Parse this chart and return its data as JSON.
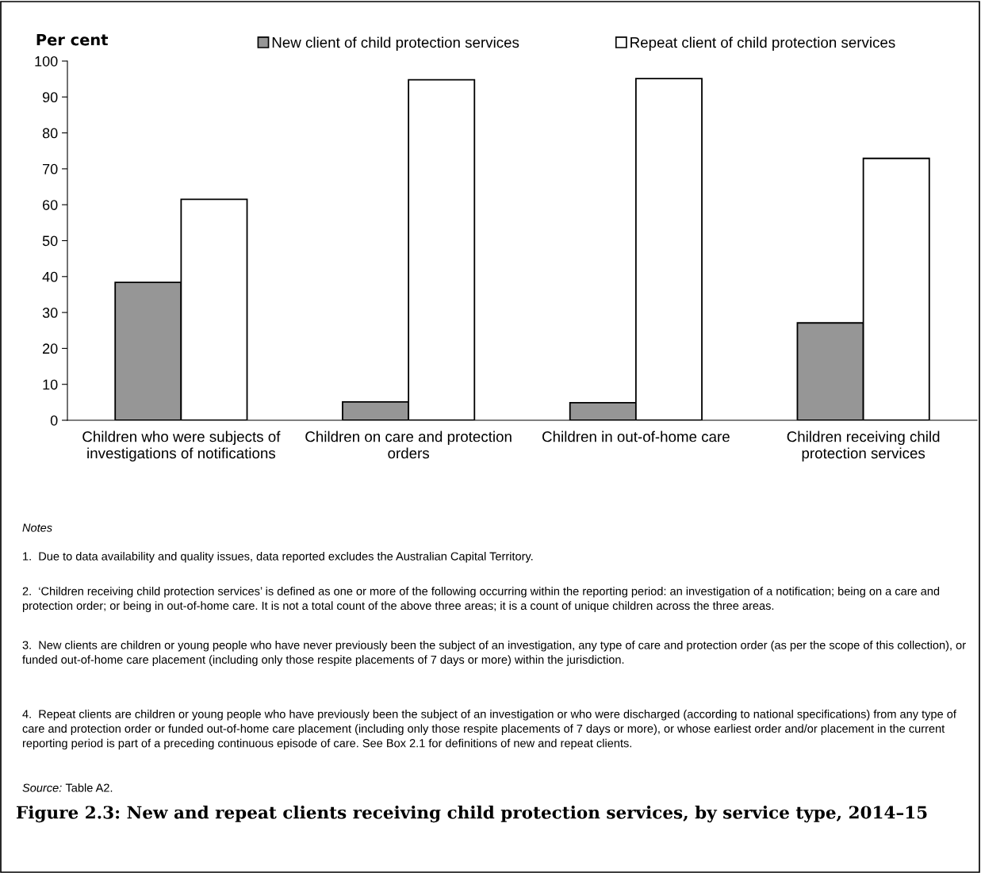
{
  "chart_data": {
    "type": "bar",
    "title": "Figure 2.3: New and repeat clients receiving child protection services, by service type, 2014–15",
    "ylabel": "Per cent",
    "categories": [
      "Children who were subjects of investigations of notifications",
      "Children on care and protection orders",
      "Children in out-of-home care",
      "Children receiving child protection services"
    ],
    "series": [
      {
        "name": "New client of child protection services",
        "color": "#969696",
        "values": [
          38.4,
          5.1,
          4.9,
          27.1
        ]
      },
      {
        "name": "Repeat client of child protection services",
        "color": "#ffffff",
        "values": [
          61.5,
          94.8,
          95.1,
          72.9
        ]
      }
    ],
    "ylim": [
      0,
      100
    ],
    "yticks": [
      0,
      10,
      20,
      30,
      40,
      50,
      60,
      70,
      80,
      90,
      100
    ],
    "grid": false,
    "legend": "top",
    "annotations": [
      "Notes",
      "1.  Due to data availability and quality issues, data reported excludes the Australian Capital Territory.",
      "2.  ‘Children receiving child protection services’ is defined as one or more of the following occurring within the reporting period: an investigation of a notification; being on a care and protection order; or being in out-of-home care. It is not a total count of the above three areas; it is a count of unique children across the three areas.",
      "3.  New clients are children or young people who have never previously been the subject of an investigation, any type of care and protection order (as per the scope of this collection), or funded out-of-home care placement (including only those respite placements of 7 days or more) within the jurisdiction.",
      "4.  Repeat clients are children or young people who have previously been the subject of an investigation or who were discharged (according to national specifications) from any type of care and protection order or funded out-of-home care placement (including only those respite placements of 7 days or more), or whose earliest order and/or placement in the current reporting period is part of a preceding continuous episode of care. See Box 2.1 for definitions of new and repeat clients.",
      "Source: Table A2."
    ]
  }
}
